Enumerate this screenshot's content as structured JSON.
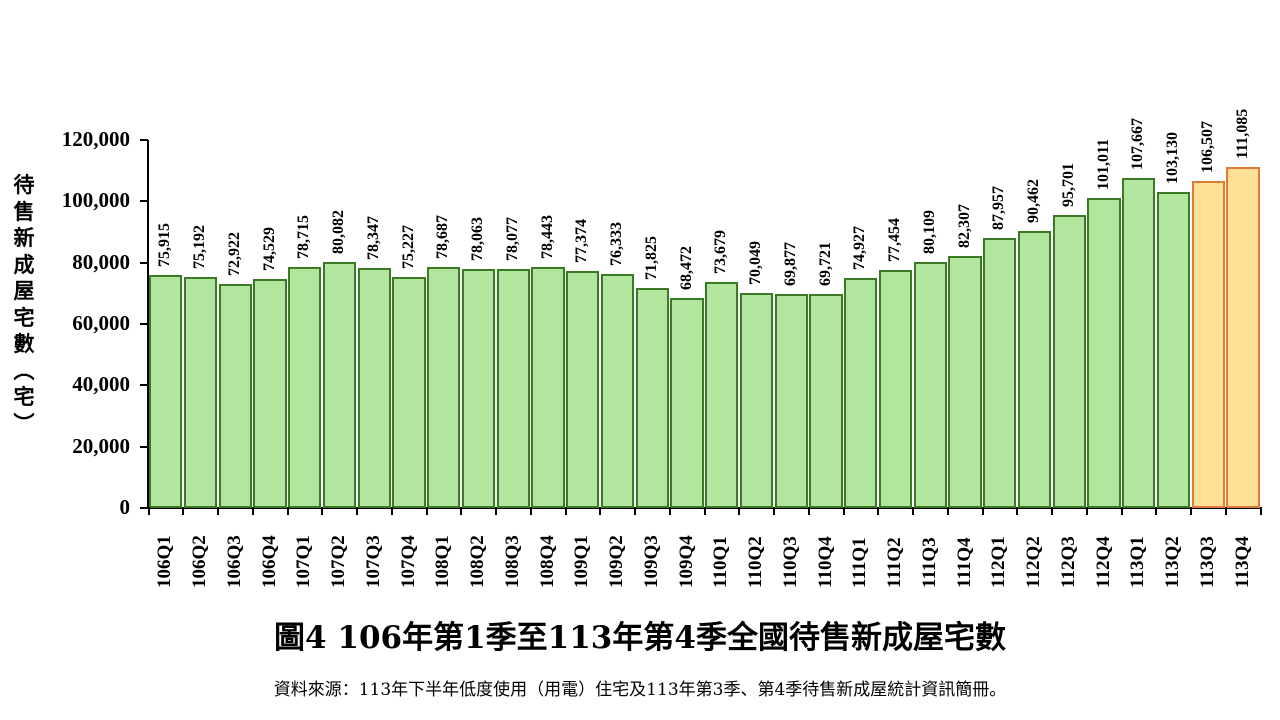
{
  "chart_data": {
    "type": "bar",
    "title": "圖4 106年第1季至113年第4季全國待售新成屋宅數",
    "xlabel": "",
    "ylabel": "待售新成屋宅數（宅）",
    "ylim": [
      0,
      120000
    ],
    "yticks": [
      "0",
      "20,000",
      "40,000",
      "60,000",
      "80,000",
      "100,000",
      "120,000"
    ],
    "grid": false,
    "legend": null,
    "categories": [
      "106Q1",
      "106Q2",
      "106Q3",
      "106Q4",
      "107Q1",
      "107Q2",
      "107Q3",
      "107Q4",
      "108Q1",
      "108Q2",
      "108Q3",
      "108Q4",
      "109Q1",
      "109Q2",
      "109Q3",
      "109Q4",
      "110Q1",
      "110Q2",
      "110Q3",
      "110Q4",
      "111Q1",
      "111Q2",
      "111Q3",
      "111Q4",
      "112Q1",
      "112Q2",
      "112Q3",
      "112Q4",
      "113Q1",
      "113Q2",
      "113Q3",
      "113Q4"
    ],
    "values": [
      75915,
      75192,
      72922,
      74529,
      78715,
      80082,
      78347,
      75227,
      78687,
      78063,
      78077,
      78443,
      77374,
      76333,
      71825,
      68472,
      73679,
      70049,
      69877,
      69721,
      74927,
      77454,
      80109,
      82307,
      87957,
      90462,
      95701,
      101011,
      107667,
      103130,
      106507,
      111085
    ],
    "value_labels": [
      "75,915",
      "75,192",
      "72,922",
      "74,529",
      "78,715",
      "80,082",
      "78,347",
      "75,227",
      "78,687",
      "78,063",
      "78,077",
      "78,443",
      "77,374",
      "76,333",
      "71,825",
      "68,472",
      "73,679",
      "70,049",
      "69,877",
      "69,721",
      "74,927",
      "77,454",
      "80,109",
      "82,307",
      "87,957",
      "90,462",
      "95,701",
      "101,011",
      "107,667",
      "103,130",
      "106,507",
      "111,085"
    ],
    "highlighted_categories": [
      "113Q3",
      "113Q4"
    ],
    "colors": {
      "bar_fill": "#b2e59e",
      "bar_border": "#3b7a24",
      "highlight_fill": "#ffe096",
      "highlight_border": "#e07a35"
    },
    "source_note": "資料來源：113年下半年低度使用（用電）住宅及113年第3季、第4季待售新成屋統計資訊簡冊。"
  },
  "ylabel_chars": [
    "待",
    "售",
    "新",
    "成",
    "屋",
    "宅",
    "數",
    "︵",
    "宅",
    "︶"
  ]
}
